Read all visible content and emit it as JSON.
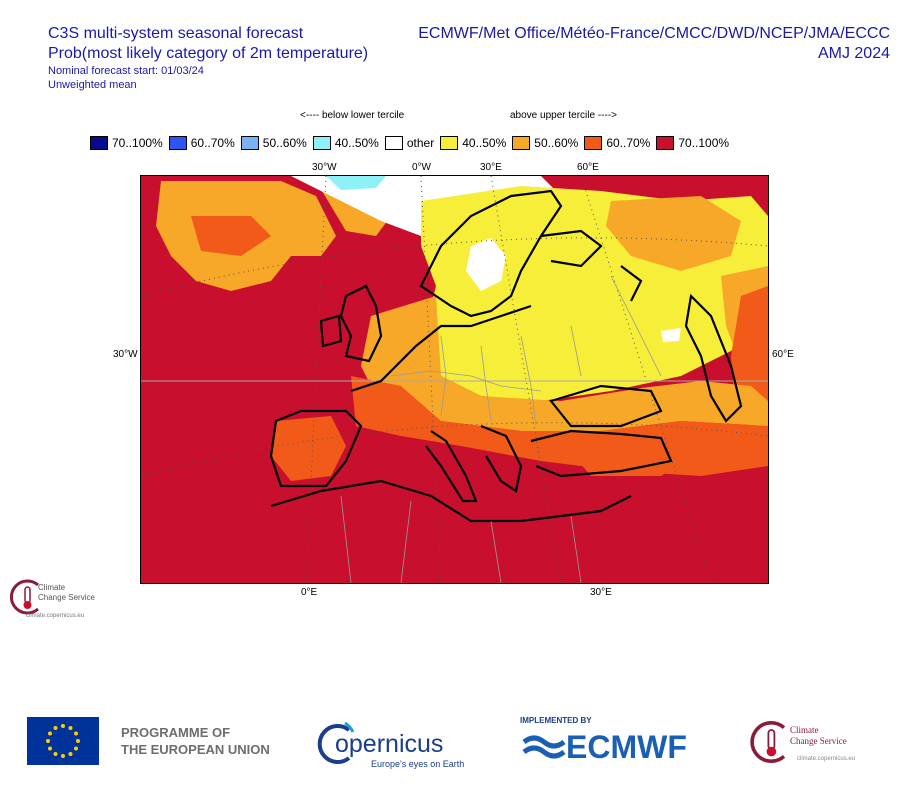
{
  "header": {
    "title_line1": "C3S multi-system seasonal forecast",
    "title_line2": "Prob(most likely category of 2m temperature)",
    "forecast_start": "Nominal forecast start: 01/03/24",
    "mean_type": "Unweighted mean",
    "centres": "ECMWF/Met Office/Météo-France/CMCC/DWD/NCEP/JMA/ECCC",
    "season": "AMJ 2024"
  },
  "legend": {
    "below_caption": "<---- below lower tercile",
    "above_caption": "above upper tercile ---->",
    "items": [
      {
        "label": "70..100%",
        "color": "#0a0a8c"
      },
      {
        "label": "60..70%",
        "color": "#2f54f0"
      },
      {
        "label": "50..60%",
        "color": "#78b4f5"
      },
      {
        "label": "40..50%",
        "color": "#8ff0f5"
      },
      {
        "label": "other",
        "color": "#ffffff"
      },
      {
        "label": "40..50%",
        "color": "#f7ee3a"
      },
      {
        "label": "50..60%",
        "color": "#f7a828"
      },
      {
        "label": "60..70%",
        "color": "#f25a1a"
      },
      {
        "label": "70..100%",
        "color": "#c8102e"
      }
    ]
  },
  "map": {
    "top_ticks": [
      "30°W",
      "0°W",
      "30°E",
      "60°E"
    ],
    "left_tick": "30°W",
    "right_tick": "60°E",
    "bottom_ticks": [
      "0°E",
      "30°E"
    ]
  },
  "c3s_small": {
    "line1": "Climate",
    "line2": "Change Service",
    "url": "climate.copernicus.eu"
  },
  "footer": {
    "programme_line1": "PROGRAMME OF",
    "programme_line2": "THE EUROPEAN UNION",
    "copernicus": "opernicus",
    "copernicus_tagline": "Europe's eyes on Earth",
    "implemented_by": "IMPLEMENTED BY",
    "ecmwf": "ECMWF",
    "c3s_line1": "Climate",
    "c3s_line2": "Change Service",
    "c3s_url": "climate.copernicus.eu"
  }
}
